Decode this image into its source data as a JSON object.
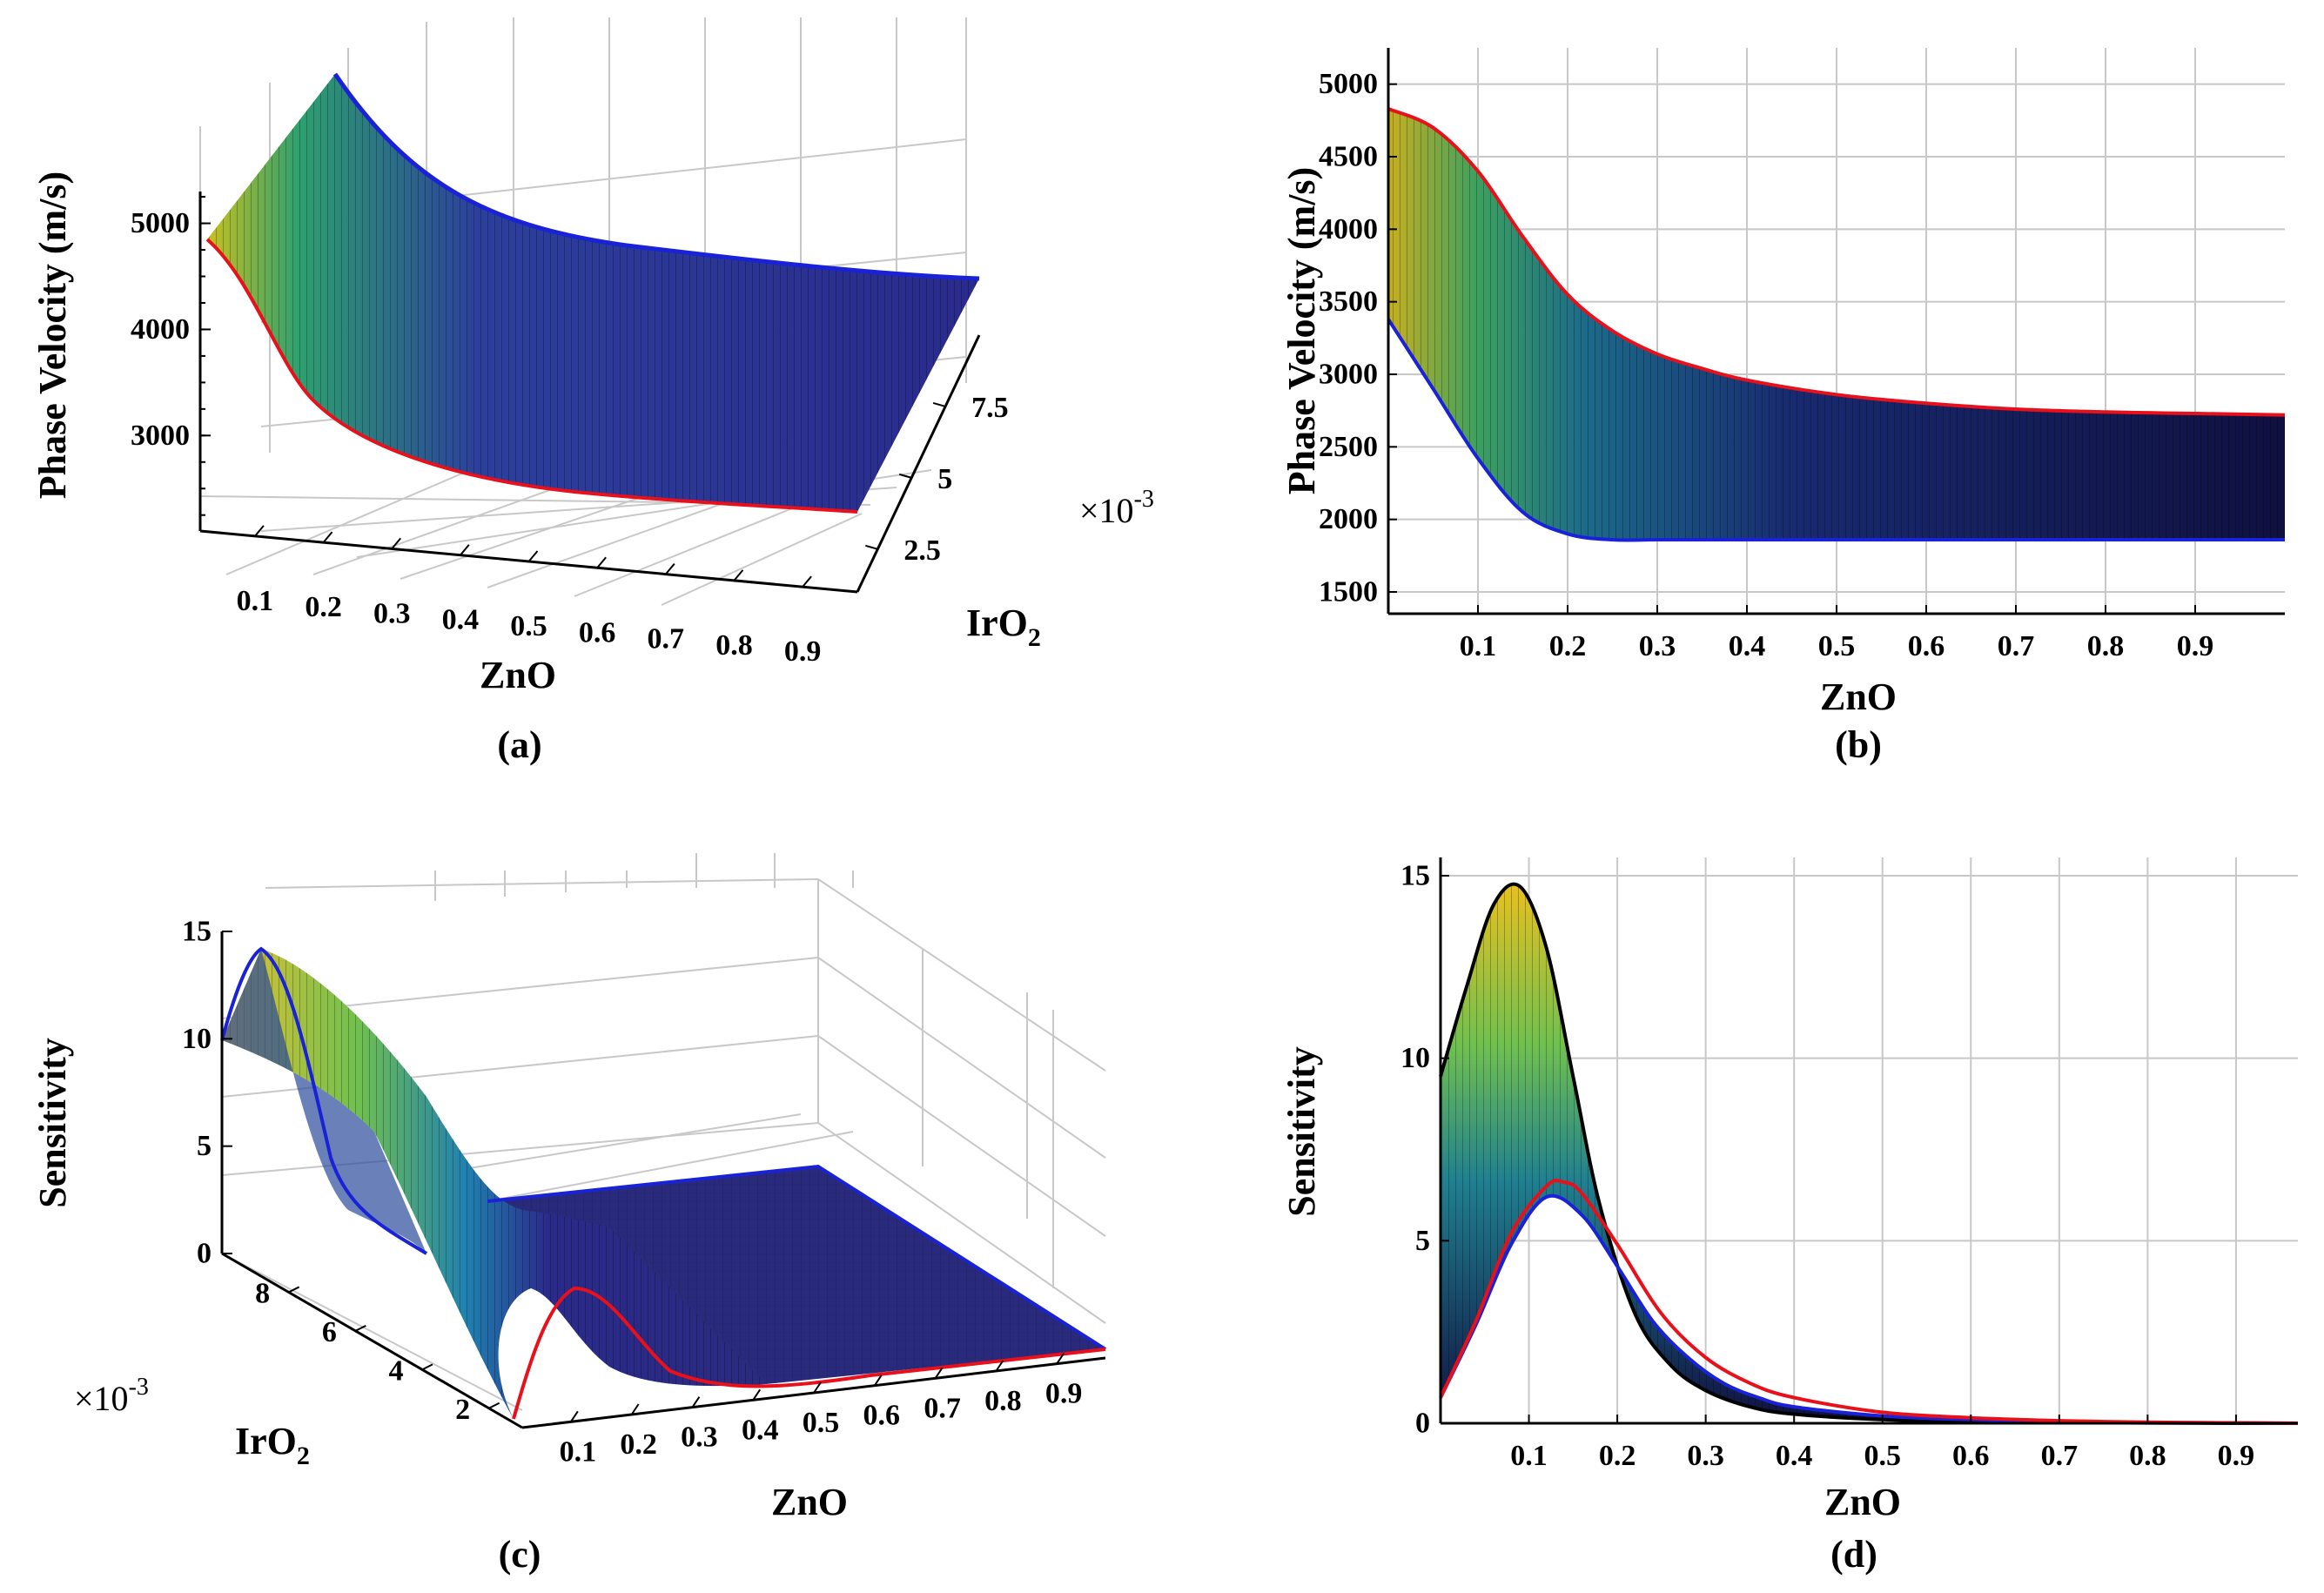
{
  "figure": {
    "captions": [
      "(a)",
      "(b)",
      "(c)",
      "(d)"
    ],
    "colors": {
      "upper_edge": "#e8101a",
      "lower_edge": "#1a22d8",
      "background": "#ffffff"
    }
  },
  "chart_data": [
    {
      "type": "surface",
      "panel": "a",
      "title": "",
      "xlabel": "ZnO",
      "ylabel": "IrO",
      "ylabel_sub": "2",
      "zlabel": "Phase Velocity (m/s)",
      "exponent_label": "×10",
      "exponent_power": "-3",
      "x_ticks": [
        "0.1",
        "0.2",
        "0.3",
        "0.4",
        "0.5",
        "0.6",
        "0.7",
        "0.8",
        "0.9"
      ],
      "y_ticks": [
        "2.5",
        "5",
        "7.5"
      ],
      "z_ticks": [
        "3000",
        "4000",
        "5000"
      ],
      "xlim": [
        0.02,
        0.98
      ],
      "ylim": [
        0.001,
        0.01
      ],
      "zlim": [
        2100,
        5300
      ],
      "series": [
        {
          "name": "IrO2 = 0.001 (red edge)",
          "x": [
            0.02,
            0.1,
            0.2,
            0.3,
            0.4,
            0.5,
            0.6,
            0.7,
            0.8,
            0.9,
            0.98
          ],
          "z": [
            4820,
            4500,
            3500,
            3100,
            2920,
            2830,
            2780,
            2760,
            2740,
            2730,
            2730
          ]
        },
        {
          "name": "IrO2 = 0.01 (blue edge)",
          "x": [
            0.02,
            0.1,
            0.2,
            0.3,
            0.4,
            0.5,
            0.6,
            0.7,
            0.8,
            0.9,
            0.98
          ],
          "z": [
            5250,
            4900,
            3700,
            3200,
            2980,
            2880,
            2820,
            2790,
            2770,
            2760,
            2750
          ]
        }
      ]
    },
    {
      "type": "area",
      "panel": "b",
      "title": "",
      "xlabel": "ZnO",
      "ylabel": "Phase Velocity (m/s)",
      "x_ticks": [
        "0.1",
        "0.2",
        "0.3",
        "0.4",
        "0.5",
        "0.6",
        "0.7",
        "0.8",
        "0.9"
      ],
      "y_ticks": [
        "1500",
        "2000",
        "2500",
        "3000",
        "3500",
        "4000",
        "4500",
        "5000"
      ],
      "xlim": [
        0.0,
        1.0
      ],
      "ylim": [
        1350,
        5250
      ],
      "series": [
        {
          "name": "upper (red)",
          "x": [
            0.0,
            0.05,
            0.1,
            0.15,
            0.2,
            0.25,
            0.3,
            0.35,
            0.4,
            0.5,
            0.6,
            0.7,
            0.8,
            0.9,
            1.0
          ],
          "values": [
            4830,
            4700,
            4400,
            3950,
            3550,
            3300,
            3140,
            3040,
            2960,
            2860,
            2800,
            2760,
            2740,
            2730,
            2720
          ]
        },
        {
          "name": "lower (blue)",
          "x": [
            0.0,
            0.05,
            0.1,
            0.15,
            0.2,
            0.25,
            0.3,
            0.35,
            0.4,
            0.5,
            0.6,
            0.7,
            0.8,
            0.9,
            1.0
          ],
          "values": [
            3380,
            2900,
            2420,
            2050,
            1900,
            1860,
            1860,
            1860,
            1860,
            1860,
            1860,
            1860,
            1860,
            1860,
            1860
          ]
        }
      ]
    },
    {
      "type": "surface",
      "panel": "c",
      "title": "",
      "xlabel": "ZnO",
      "ylabel": "IrO",
      "ylabel_sub": "2",
      "zlabel": "Sensitivity",
      "exponent_label": "×10",
      "exponent_power": "-3",
      "x_ticks": [
        "0.1",
        "0.2",
        "0.3",
        "0.4",
        "0.5",
        "0.6",
        "0.7",
        "0.8",
        "0.9"
      ],
      "y_ticks": [
        "2",
        "4",
        "6",
        "8"
      ],
      "z_ticks": [
        "0",
        "5",
        "10",
        "15"
      ],
      "xlim": [
        0.02,
        0.98
      ],
      "ylim": [
        0.001,
        0.01
      ],
      "zlim": [
        0,
        15
      ],
      "series": [
        {
          "name": "IrO2 = 0.001 (red edge)",
          "x": [
            0.02,
            0.1,
            0.15,
            0.2,
            0.3,
            0.4,
            0.5,
            0.6,
            0.7,
            0.8,
            0.9,
            0.98
          ],
          "z": [
            0.8,
            5.5,
            6.5,
            4.8,
            1.8,
            0.6,
            0.25,
            0.1,
            0.05,
            0.02,
            0.01,
            0.0
          ]
        },
        {
          "name": "IrO2 = 0.01 (blue edge)",
          "x": [
            0.02,
            0.1,
            0.15,
            0.2,
            0.3,
            0.4,
            0.5,
            0.6,
            0.7,
            0.8,
            0.9,
            0.98
          ],
          "z": [
            9.8,
            14.6,
            11.0,
            4.5,
            0.3,
            0.05,
            0.0,
            0.0,
            0.0,
            0.0,
            0.0,
            0.0
          ]
        }
      ]
    },
    {
      "type": "area",
      "panel": "d",
      "title": "",
      "xlabel": "ZnO",
      "ylabel": "Sensitivity",
      "x_ticks": [
        "0.1",
        "0.2",
        "0.3",
        "0.4",
        "0.5",
        "0.6",
        "0.7",
        "0.8",
        "0.9"
      ],
      "y_ticks": [
        "0",
        "5",
        "10",
        "15"
      ],
      "xlim": [
        0.0,
        0.97
      ],
      "ylim": [
        0,
        15.5
      ],
      "series": [
        {
          "name": "upper envelope (black)",
          "x": [
            0.0,
            0.03,
            0.06,
            0.09,
            0.12,
            0.15,
            0.18,
            0.22,
            0.26,
            0.3,
            0.35,
            0.4,
            0.5,
            0.6,
            0.7,
            0.8,
            0.9,
            0.97
          ],
          "values": [
            9.5,
            12.0,
            14.2,
            14.7,
            13.0,
            9.5,
            6.0,
            3.0,
            1.6,
            0.9,
            0.45,
            0.25,
            0.1,
            0.05,
            0.02,
            0.01,
            0.0,
            0.0
          ]
        },
        {
          "name": "lower edge (blue)",
          "x": [
            0.0,
            0.04,
            0.08,
            0.12,
            0.16,
            0.2,
            0.24,
            0.28,
            0.32,
            0.36,
            0.4,
            0.5,
            0.6,
            0.7,
            0.8,
            0.9,
            0.97
          ],
          "values": [
            0.7,
            2.7,
            4.9,
            6.2,
            5.7,
            4.3,
            2.8,
            1.8,
            1.1,
            0.7,
            0.45,
            0.2,
            0.1,
            0.05,
            0.02,
            0.01,
            0.0
          ]
        },
        {
          "name": "IrO2 min (red)",
          "x": [
            0.0,
            0.04,
            0.08,
            0.12,
            0.14,
            0.16,
            0.2,
            0.25,
            0.3,
            0.35,
            0.4,
            0.5,
            0.6,
            0.7,
            0.8,
            0.9,
            0.97
          ],
          "values": [
            0.7,
            2.8,
            5.2,
            6.5,
            6.6,
            6.3,
            4.9,
            3.0,
            1.8,
            1.1,
            0.7,
            0.3,
            0.15,
            0.07,
            0.03,
            0.01,
            0.0
          ]
        }
      ]
    }
  ]
}
